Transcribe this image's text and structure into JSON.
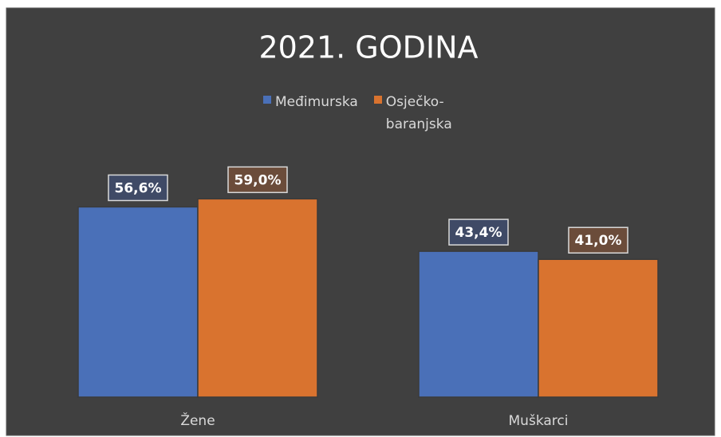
{
  "chart_data": {
    "type": "bar",
    "title": "2021. GODINA",
    "categories": [
      "Žene",
      "Muškarci"
    ],
    "series": [
      {
        "name": "Međimurska",
        "color": "#4a70b8",
        "values": [
          56.6,
          43.4
        ],
        "value_labels": [
          "56,6%",
          "43,4%"
        ]
      },
      {
        "name": "Osječko-baranjska",
        "color": "#d9732f",
        "values": [
          59.0,
          41.0
        ],
        "value_labels": [
          "59,0%",
          "41,0%"
        ]
      }
    ],
    "ylim": [
      0,
      70
    ],
    "legend": "top"
  }
}
